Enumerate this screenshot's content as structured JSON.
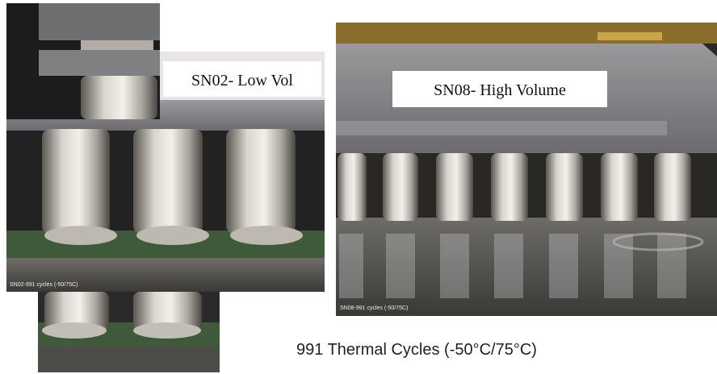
{
  "left_panel": {
    "label": "SN02- Low Vol",
    "caption": "SN02-991 cycles (-50/75C)"
  },
  "right_panel": {
    "label": "SN08- High Volume",
    "caption": "SN08-991 cycles (-50/75C)"
  },
  "footer": {
    "title": "991 Thermal Cycles (-50°C/75°C)"
  }
}
